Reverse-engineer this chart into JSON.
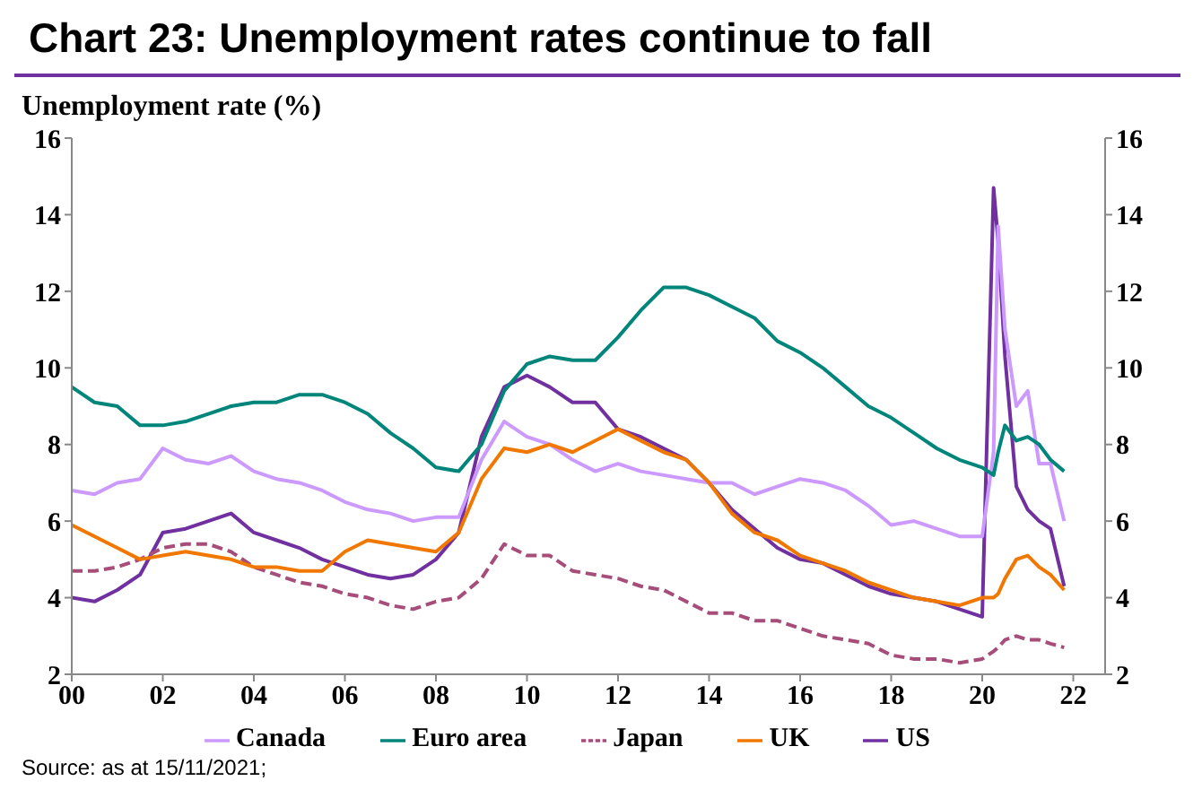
{
  "chart_data": {
    "type": "line",
    "title": "Chart 23: Unemployment rates continue to fall",
    "ylabel": "Unemployment rate (%)",
    "x": [
      2000,
      2000.5,
      2001,
      2001.5,
      2002,
      2002.5,
      2003,
      2003.5,
      2004,
      2004.5,
      2005,
      2005.5,
      2006,
      2006.5,
      2007,
      2007.5,
      2008,
      2008.5,
      2009,
      2009.5,
      2010,
      2010.5,
      2011,
      2011.5,
      2012,
      2012.5,
      2013,
      2013.5,
      2014,
      2014.5,
      2015,
      2015.5,
      2016,
      2016.5,
      2017,
      2017.5,
      2018,
      2018.5,
      2019,
      2019.5,
      2020,
      2020.25,
      2020.35,
      2020.5,
      2020.75,
      2021,
      2021.25,
      2021.5,
      2021.8
    ],
    "series": [
      {
        "name": "US",
        "color": "#7030a0",
        "line_style": "solid",
        "values": [
          4.0,
          3.9,
          4.2,
          4.6,
          5.7,
          5.8,
          6.0,
          6.2,
          5.7,
          5.5,
          5.3,
          5.0,
          4.8,
          4.6,
          4.5,
          4.6,
          5.0,
          5.7,
          8.2,
          9.5,
          9.8,
          9.5,
          9.1,
          9.1,
          8.4,
          8.2,
          7.9,
          7.6,
          7.0,
          6.3,
          5.8,
          5.3,
          5.0,
          4.9,
          4.6,
          4.3,
          4.1,
          4.0,
          3.9,
          3.7,
          3.5,
          14.7,
          13.3,
          10.3,
          6.9,
          6.3,
          6.0,
          5.8,
          4.3
        ]
      },
      {
        "name": "Japan",
        "color": "#a64d79",
        "line_style": "dashed",
        "values": [
          4.7,
          4.7,
          4.8,
          5.0,
          5.3,
          5.4,
          5.4,
          5.2,
          4.8,
          4.6,
          4.4,
          4.3,
          4.1,
          4.0,
          3.8,
          3.7,
          3.9,
          4.0,
          4.5,
          5.4,
          5.1,
          5.1,
          4.7,
          4.6,
          4.5,
          4.3,
          4.2,
          3.9,
          3.6,
          3.6,
          3.4,
          3.4,
          3.2,
          3.0,
          2.9,
          2.8,
          2.5,
          2.4,
          2.4,
          2.3,
          2.4,
          2.6,
          2.7,
          2.9,
          3.0,
          2.9,
          2.9,
          2.8,
          2.7
        ]
      },
      {
        "name": "Canada",
        "color": "#cc99ff",
        "line_style": "solid",
        "values": [
          6.8,
          6.7,
          7.0,
          7.1,
          7.9,
          7.6,
          7.5,
          7.7,
          7.3,
          7.1,
          7.0,
          6.8,
          6.5,
          6.3,
          6.2,
          6.0,
          6.1,
          6.1,
          7.6,
          8.6,
          8.2,
          8.0,
          7.6,
          7.3,
          7.5,
          7.3,
          7.2,
          7.1,
          7.0,
          7.0,
          6.7,
          6.9,
          7.1,
          7.0,
          6.8,
          6.4,
          5.9,
          6.0,
          5.8,
          5.6,
          5.6,
          7.8,
          13.7,
          11.0,
          9.0,
          9.4,
          7.5,
          7.5,
          6.0
        ]
      },
      {
        "name": "UK",
        "color": "#f07800",
        "line_style": "solid",
        "values": [
          5.9,
          5.6,
          5.3,
          5.0,
          5.1,
          5.2,
          5.1,
          5.0,
          4.8,
          4.8,
          4.7,
          4.7,
          5.2,
          5.5,
          5.4,
          5.3,
          5.2,
          5.7,
          7.1,
          7.9,
          7.8,
          8.0,
          7.8,
          8.1,
          8.4,
          8.1,
          7.8,
          7.6,
          7.0,
          6.2,
          5.7,
          5.5,
          5.1,
          4.9,
          4.7,
          4.4,
          4.2,
          4.0,
          3.9,
          3.8,
          4.0,
          4.0,
          4.1,
          4.5,
          5.0,
          5.1,
          4.8,
          4.6,
          4.2
        ]
      },
      {
        "name": "Euro area",
        "color": "#00857a",
        "line_style": "solid",
        "values": [
          9.5,
          9.1,
          9.0,
          8.5,
          8.5,
          8.6,
          8.8,
          9.0,
          9.1,
          9.1,
          9.3,
          9.3,
          9.1,
          8.8,
          8.3,
          7.9,
          7.4,
          7.3,
          8.0,
          9.4,
          10.1,
          10.3,
          10.2,
          10.2,
          10.8,
          11.5,
          12.1,
          12.1,
          11.9,
          11.6,
          11.3,
          10.7,
          10.4,
          10.0,
          9.5,
          9.0,
          8.7,
          8.3,
          7.9,
          7.6,
          7.4,
          7.2,
          7.8,
          8.5,
          8.1,
          8.2,
          8.0,
          7.6,
          7.3
        ]
      }
    ],
    "xlim": [
      2000,
      2022.7
    ],
    "xticks": [
      {
        "value": 2000,
        "label": "00"
      },
      {
        "value": 2002,
        "label": "02"
      },
      {
        "value": 2004,
        "label": "04"
      },
      {
        "value": 2006,
        "label": "06"
      },
      {
        "value": 2008,
        "label": "08"
      },
      {
        "value": 2010,
        "label": "10"
      },
      {
        "value": 2012,
        "label": "12"
      },
      {
        "value": 2014,
        "label": "14"
      },
      {
        "value": 2016,
        "label": "16"
      },
      {
        "value": 2018,
        "label": "18"
      },
      {
        "value": 2020,
        "label": "20"
      },
      {
        "value": 2022,
        "label": "22"
      }
    ],
    "ylim": [
      2,
      16
    ],
    "yticks": [
      2,
      4,
      6,
      8,
      10,
      12,
      14,
      16
    ],
    "y2lim": [
      2,
      16
    ],
    "y2ticks": [
      2,
      4,
      6,
      8,
      10,
      12,
      14,
      16
    ],
    "grid": false,
    "legend": "bottom",
    "marker": "none",
    "annotations": [
      "Source: as at 15/11/2021;"
    ]
  }
}
